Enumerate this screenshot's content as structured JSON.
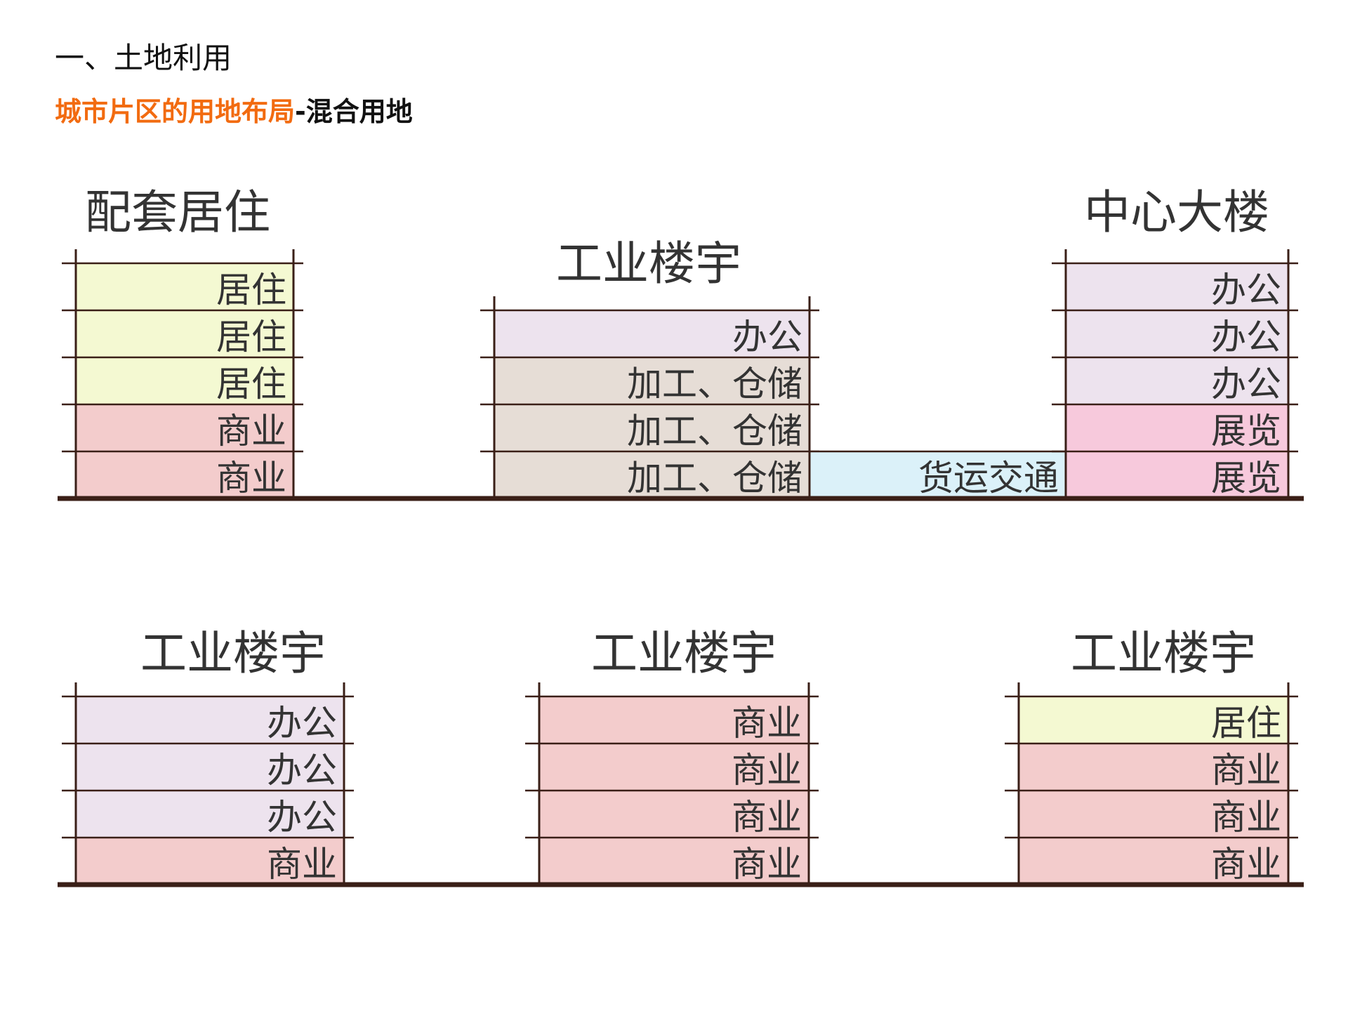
{
  "heading": "一、土地利用",
  "subheading": {
    "highlight": "城市片区的用地布局",
    "separator": "-",
    "rest": "混合用地"
  },
  "colors": {
    "heading": "#111111",
    "highlight": "#f26b10",
    "line": "#3a1f17",
    "text": "#333333",
    "居住": "#f4f9d2",
    "商业": "#f3cccc",
    "办公": "#ede3ee",
    "加工、仓储": "#e6ddd6",
    "展览": "#f7c9dc",
    "货运交通": "#dbf1f9"
  },
  "rows": [
    {
      "buildings": [
        {
          "title": "配套居住",
          "floors": [
            "居住",
            "居住",
            "居住",
            "商业",
            "商业"
          ]
        },
        {
          "title": "工业楼宇",
          "floors": [
            "办公",
            "加工、仓储",
            "加工、仓储",
            "加工、仓储"
          ]
        },
        {
          "title": "",
          "floors": [
            "货运交通"
          ]
        },
        {
          "title": "中心大楼",
          "floors": [
            "办公",
            "办公",
            "办公",
            "展览",
            "展览"
          ]
        }
      ]
    },
    {
      "buildings": [
        {
          "title": "工业楼宇",
          "floors": [
            "办公",
            "办公",
            "办公",
            "商业"
          ]
        },
        {
          "title": "工业楼宇",
          "floors": [
            "商业",
            "商业",
            "商业",
            "商业"
          ]
        },
        {
          "title": "工业楼宇",
          "floors": [
            "居住",
            "商业",
            "商业",
            "商业"
          ]
        }
      ]
    }
  ]
}
